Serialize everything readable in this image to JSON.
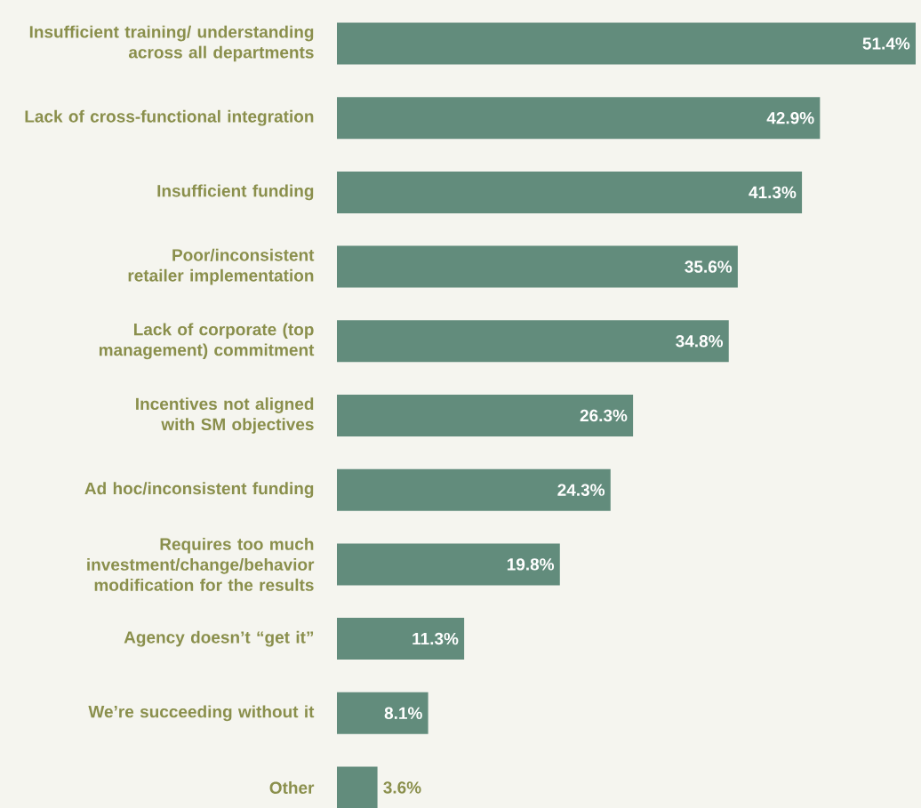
{
  "chart_data": {
    "type": "bar",
    "orientation": "horizontal",
    "color": "#628c7c",
    "categories": [
      "Insufficient training/ understanding across all departments",
      "Lack of cross-functional integration",
      "Insufficient funding",
      "Poor/inconsistent retailer implementation",
      "Lack of corporate (top management) commitment",
      "Incentives not aligned with SM objectives",
      "Ad hoc/inconsistent funding",
      "Requires too much investment/change/behavior modification for the results",
      "Agency doesn’t “get it”",
      "We’re succeeding without it",
      "Other"
    ],
    "values": [
      51.4,
      42.9,
      41.3,
      35.6,
      34.8,
      26.3,
      24.3,
      19.8,
      11.3,
      8.1,
      3.6
    ],
    "value_labels": [
      "51.4%",
      "42.9%",
      "41.3%",
      "35.6%",
      "34.8%",
      "26.3%",
      "24.3%",
      "19.8%",
      "11.3%",
      "8.1%",
      "3.6%"
    ]
  }
}
